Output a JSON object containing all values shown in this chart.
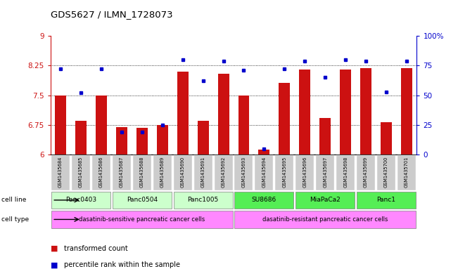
{
  "title": "GDS5627 / ILMN_1728073",
  "samples": [
    "GSM1435684",
    "GSM1435685",
    "GSM1435686",
    "GSM1435687",
    "GSM1435688",
    "GSM1435689",
    "GSM1435690",
    "GSM1435691",
    "GSM1435692",
    "GSM1435693",
    "GSM1435694",
    "GSM1435695",
    "GSM1435696",
    "GSM1435697",
    "GSM1435698",
    "GSM1435699",
    "GSM1435700",
    "GSM1435701"
  ],
  "transformed_count": [
    7.5,
    6.85,
    7.5,
    6.7,
    6.68,
    6.75,
    8.1,
    6.85,
    8.05,
    7.5,
    6.12,
    7.82,
    8.15,
    6.92,
    8.15,
    8.18,
    6.82,
    8.18
  ],
  "percentile_rank": [
    72,
    52,
    72,
    19,
    19,
    25,
    80,
    62,
    79,
    71,
    5,
    72,
    79,
    65,
    80,
    79,
    53,
    79
  ],
  "ylim_left": [
    6,
    9
  ],
  "ylim_right": [
    0,
    100
  ],
  "yticks_left": [
    6,
    6.75,
    7.5,
    8.25,
    9
  ],
  "yticks_right": [
    0,
    25,
    50,
    75,
    100
  ],
  "ytick_labels_left": [
    "6",
    "6.75",
    "7.5",
    "8.25",
    "9"
  ],
  "ytick_labels_right": [
    "0",
    "25",
    "50",
    "75",
    "100%"
  ],
  "cell_lines": [
    {
      "label": "Panc0403",
      "start": 0,
      "end": 2,
      "color": "#ccffcc"
    },
    {
      "label": "Panc0504",
      "start": 3,
      "end": 5,
      "color": "#ccffcc"
    },
    {
      "label": "Panc1005",
      "start": 6,
      "end": 8,
      "color": "#ccffcc"
    },
    {
      "label": "SU8686",
      "start": 9,
      "end": 11,
      "color": "#55ee55"
    },
    {
      "label": "MiaPaCa2",
      "start": 12,
      "end": 14,
      "color": "#55ee55"
    },
    {
      "label": "Panc1",
      "start": 15,
      "end": 17,
      "color": "#55ee55"
    }
  ],
  "cell_types": [
    {
      "label": "dasatinib-sensitive pancreatic cancer cells",
      "start": 0,
      "end": 8,
      "color": "#ff88ff"
    },
    {
      "label": "dasatinib-resistant pancreatic cancer cells",
      "start": 9,
      "end": 17,
      "color": "#ff88ff"
    }
  ],
  "bar_color": "#cc1111",
  "dot_color": "#0000cc",
  "bg_color": "#ffffff",
  "left_axis_color": "#cc1111",
  "right_axis_color": "#0000cc",
  "tick_label_color": "#888888"
}
